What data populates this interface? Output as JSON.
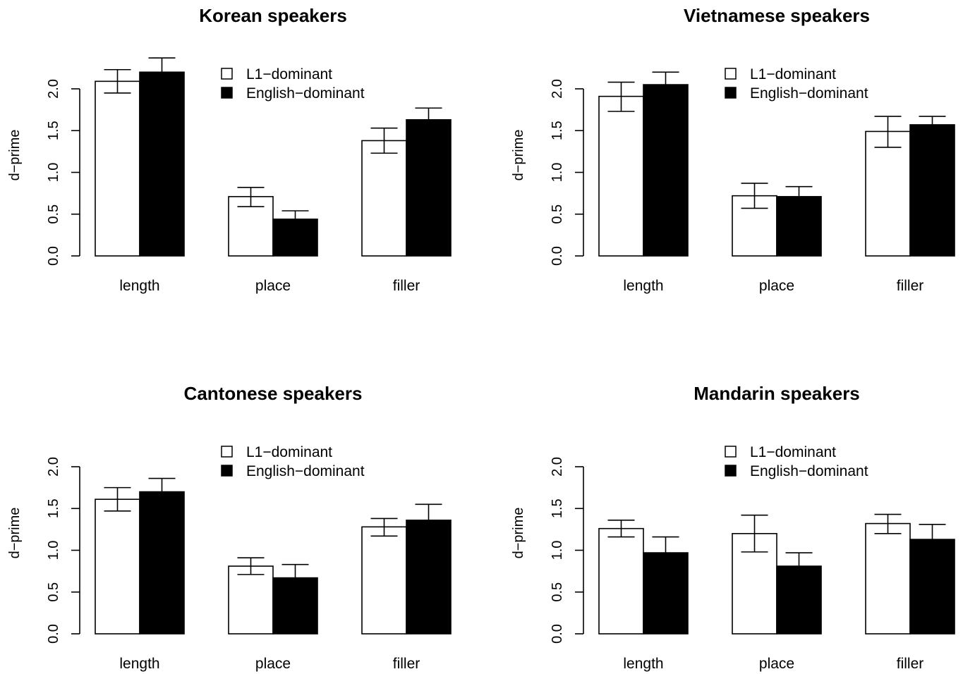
{
  "chart_data": [
    {
      "type": "bar",
      "title": "Korean speakers",
      "ylabel": "d−prime",
      "xlabel": "",
      "categories": [
        "length",
        "place",
        "filler"
      ],
      "ylim": [
        0,
        2.0
      ],
      "yticks": [
        "0.0",
        "0.5",
        "1.0",
        "1.5",
        "2.0"
      ],
      "legend_position": "top-right",
      "series": [
        {
          "name": "L1−dominant",
          "color": "#ffffff",
          "values": [
            2.09,
            0.71,
            1.38
          ],
          "err_low": [
            1.95,
            0.59,
            1.23
          ],
          "err_high": [
            2.23,
            0.82,
            1.53
          ]
        },
        {
          "name": "English−dominant",
          "color": "#000000",
          "values": [
            2.2,
            0.44,
            1.63
          ],
          "err_low": [
            2.04,
            0.35,
            1.49
          ],
          "err_high": [
            2.37,
            0.54,
            1.77
          ]
        }
      ]
    },
    {
      "type": "bar",
      "title": "Vietnamese speakers",
      "ylabel": "d−prime",
      "xlabel": "",
      "categories": [
        "length",
        "place",
        "filler"
      ],
      "ylim": [
        0,
        2.0
      ],
      "yticks": [
        "0.0",
        "0.5",
        "1.0",
        "1.5",
        "2.0"
      ],
      "legend_position": "top-right",
      "series": [
        {
          "name": "L1−dominant",
          "color": "#ffffff",
          "values": [
            1.91,
            0.72,
            1.49
          ],
          "err_low": [
            1.73,
            0.57,
            1.3
          ],
          "err_high": [
            2.08,
            0.87,
            1.67
          ]
        },
        {
          "name": "English−dominant",
          "color": "#000000",
          "values": [
            2.05,
            0.71,
            1.57
          ],
          "err_low": [
            1.9,
            0.6,
            1.47
          ],
          "err_high": [
            2.2,
            0.83,
            1.67
          ]
        }
      ]
    },
    {
      "type": "bar",
      "title": "Cantonese speakers",
      "ylabel": "d−prime",
      "xlabel": "",
      "categories": [
        "length",
        "place",
        "filler"
      ],
      "ylim": [
        0,
        2.0
      ],
      "yticks": [
        "0.0",
        "0.5",
        "1.0",
        "1.5",
        "2.0"
      ],
      "legend_position": "top-right",
      "series": [
        {
          "name": "L1−dominant",
          "color": "#ffffff",
          "values": [
            1.61,
            0.81,
            1.28
          ],
          "err_low": [
            1.47,
            0.71,
            1.17
          ],
          "err_high": [
            1.75,
            0.91,
            1.38
          ]
        },
        {
          "name": "English−dominant",
          "color": "#000000",
          "values": [
            1.7,
            0.67,
            1.36
          ],
          "err_low": [
            1.55,
            0.5,
            1.17
          ],
          "err_high": [
            1.86,
            0.83,
            1.55
          ]
        }
      ]
    },
    {
      "type": "bar",
      "title": "Mandarin speakers",
      "ylabel": "d−prime",
      "xlabel": "",
      "categories": [
        "length",
        "place",
        "filler"
      ],
      "ylim": [
        0,
        2.0
      ],
      "yticks": [
        "0.0",
        "0.5",
        "1.0",
        "1.5",
        "2.0"
      ],
      "legend_position": "top-right",
      "series": [
        {
          "name": "L1−dominant",
          "color": "#ffffff",
          "values": [
            1.26,
            1.2,
            1.32
          ],
          "err_low": [
            1.16,
            0.98,
            1.2
          ],
          "err_high": [
            1.36,
            1.42,
            1.43
          ]
        },
        {
          "name": "English−dominant",
          "color": "#000000",
          "values": [
            0.97,
            0.81,
            1.13
          ],
          "err_low": [
            0.77,
            0.64,
            0.96
          ],
          "err_high": [
            1.16,
            0.97,
            1.31
          ]
        }
      ]
    }
  ]
}
